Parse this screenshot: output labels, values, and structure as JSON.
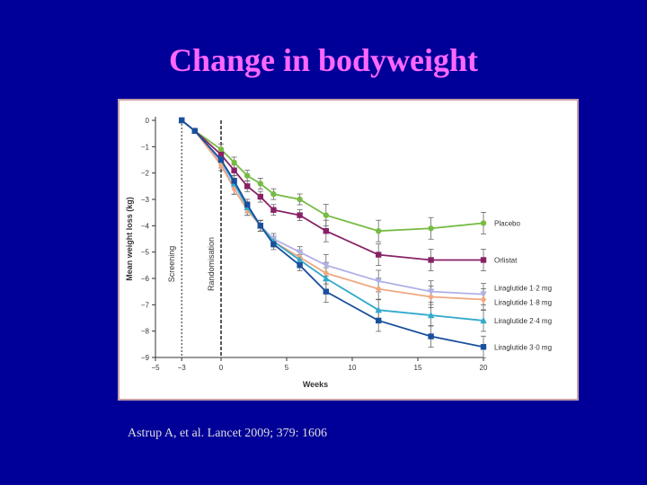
{
  "slide": {
    "title": "Change in bodyweight",
    "citation": "Astrup A, et al. Lancet 2009; 379: 1606"
  },
  "chart_data": {
    "type": "line",
    "xlabel": "Weeks",
    "ylabel": "Mean weight loss (kg)",
    "xlim": [
      -5,
      20
    ],
    "ylim": [
      -9,
      0
    ],
    "xticks": [
      -5,
      -3,
      0,
      5,
      10,
      15,
      20
    ],
    "xtick_labels": [
      "−5",
      "−3",
      "0",
      "5",
      "10",
      "15",
      "20"
    ],
    "yticks": [
      0,
      -1,
      -2,
      -3,
      -4,
      -5,
      -6,
      -7,
      -8,
      -9
    ],
    "ytick_labels": [
      "0",
      "−1",
      "−2",
      "−3",
      "−4",
      "−5",
      "−6",
      "−7",
      "−8",
      "−9"
    ],
    "grid": false,
    "annotations": [
      {
        "text": "Screening",
        "x": -3
      },
      {
        "text": "Randomisation",
        "x": 0
      }
    ],
    "x": [
      -3,
      -2,
      0,
      1,
      2,
      3,
      4,
      6,
      8,
      12,
      16,
      20
    ],
    "series": [
      {
        "name": "Placebo",
        "marker": "circle",
        "color": "#77bb44",
        "values": [
          0,
          -0.4,
          -1.1,
          -1.6,
          -2.1,
          -2.4,
          -2.8,
          -3.0,
          -3.6,
          -4.2,
          -4.1,
          -3.9
        ]
      },
      {
        "name": "Orlistat",
        "marker": "square",
        "color": "#882266",
        "values": [
          0,
          -0.4,
          -1.3,
          -1.9,
          -2.5,
          -2.9,
          -3.4,
          -3.6,
          -4.2,
          -5.1,
          -5.3,
          -5.3
        ]
      },
      {
        "name": "Liraglutide 1·2 mg",
        "marker": "triangle-down",
        "color": "#b0b0e6",
        "values": [
          0,
          -0.4,
          -1.6,
          -2.6,
          -3.4,
          -4.0,
          -4.5,
          -5.0,
          -5.5,
          -6.1,
          -6.5,
          -6.6
        ]
      },
      {
        "name": "Liraglutide 1·8 mg",
        "marker": "diamond",
        "color": "#f0a880",
        "values": [
          0,
          -0.4,
          -1.7,
          -2.6,
          -3.4,
          -4.0,
          -4.6,
          -5.2,
          -5.8,
          -6.4,
          -6.7,
          -6.8
        ]
      },
      {
        "name": "Liraglutide 2·4 mg",
        "marker": "triangle-up",
        "color": "#33aacc",
        "values": [
          0,
          -0.4,
          -1.5,
          -2.4,
          -3.3,
          -4.0,
          -4.6,
          -5.3,
          -6.0,
          -7.2,
          -7.4,
          -7.6
        ]
      },
      {
        "name": "Liraglutide 3·0 mg",
        "marker": "square",
        "color": "#1a4f9c",
        "values": [
          0,
          -0.4,
          -1.5,
          -2.3,
          -3.2,
          -4.0,
          -4.7,
          -5.5,
          -6.5,
          -7.6,
          -8.2,
          -8.6
        ]
      }
    ],
    "legend_placement": "right"
  }
}
